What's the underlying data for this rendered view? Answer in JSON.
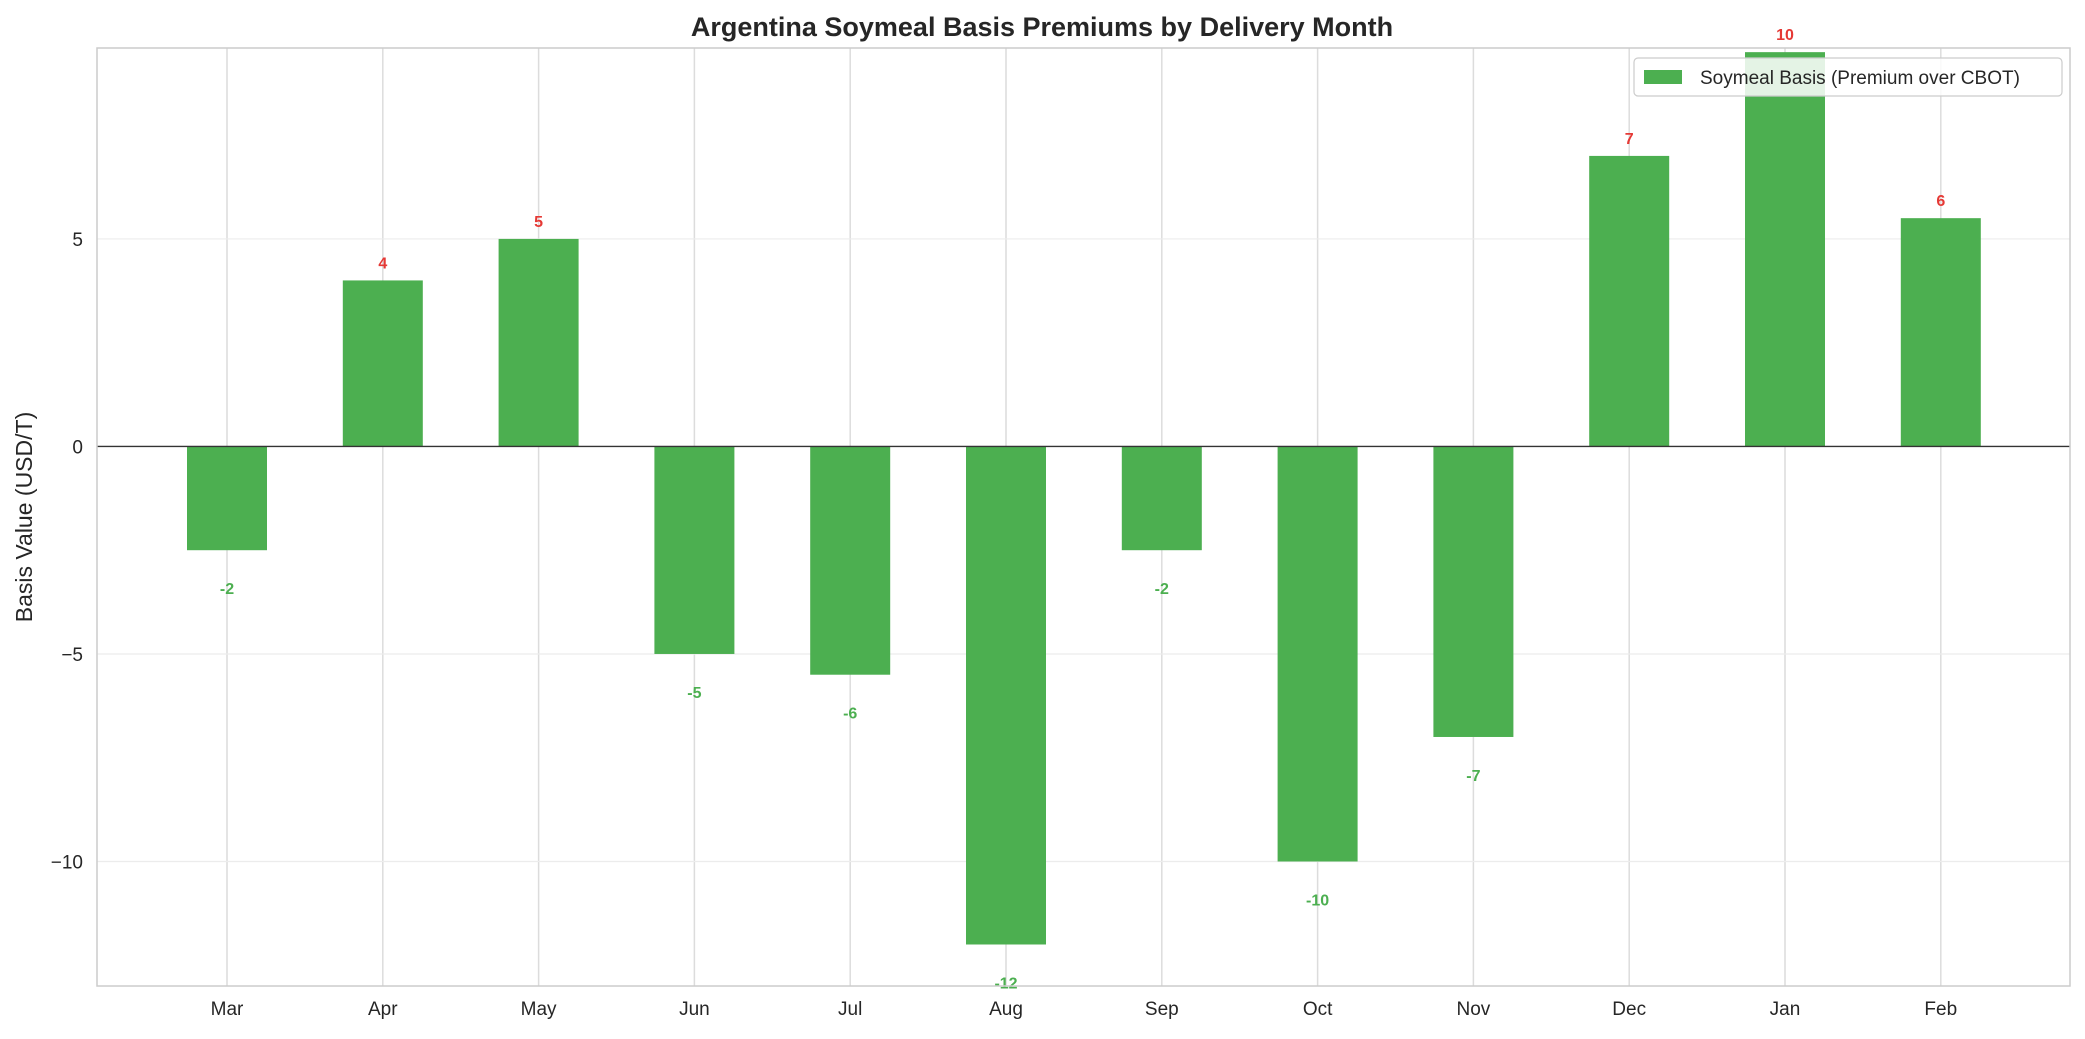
{
  "chart_data": {
    "type": "bar",
    "title": "Argentina Soymeal Basis Premiums by Delivery Month",
    "xlabel": "",
    "ylabel": "Basis Value (USD/T)",
    "categories": [
      "Mar",
      "Apr",
      "May",
      "Jun",
      "Jul",
      "Aug",
      "Sep",
      "Oct",
      "Nov",
      "Dec",
      "Jan",
      "Feb"
    ],
    "series": [
      {
        "name": "Soymeal Basis (Premium over CBOT)",
        "values": [
          -2.5,
          4,
          5,
          -5,
          -5.5,
          -12,
          -2.5,
          -10,
          -7,
          7,
          9.5,
          5.5
        ],
        "data_labels": [
          "-2",
          "4",
          "5",
          "-5",
          "-6",
          "-12",
          "-2",
          "-10",
          "-7",
          "7",
          "10",
          "6"
        ],
        "color": "#4caf50"
      }
    ],
    "ylim": [
      -13,
      9.6
    ],
    "yticks": [
      -10,
      -5,
      0,
      5
    ],
    "ytick_labels": [
      "−10",
      "−5",
      "0",
      "5"
    ],
    "grid": true,
    "legend": "top-right",
    "colors": {
      "positive_label": "#e53935",
      "negative_label": "#4caf50",
      "zero_line": "#333333",
      "grid": "#dcdcdc",
      "frame": "#cccccc"
    }
  }
}
